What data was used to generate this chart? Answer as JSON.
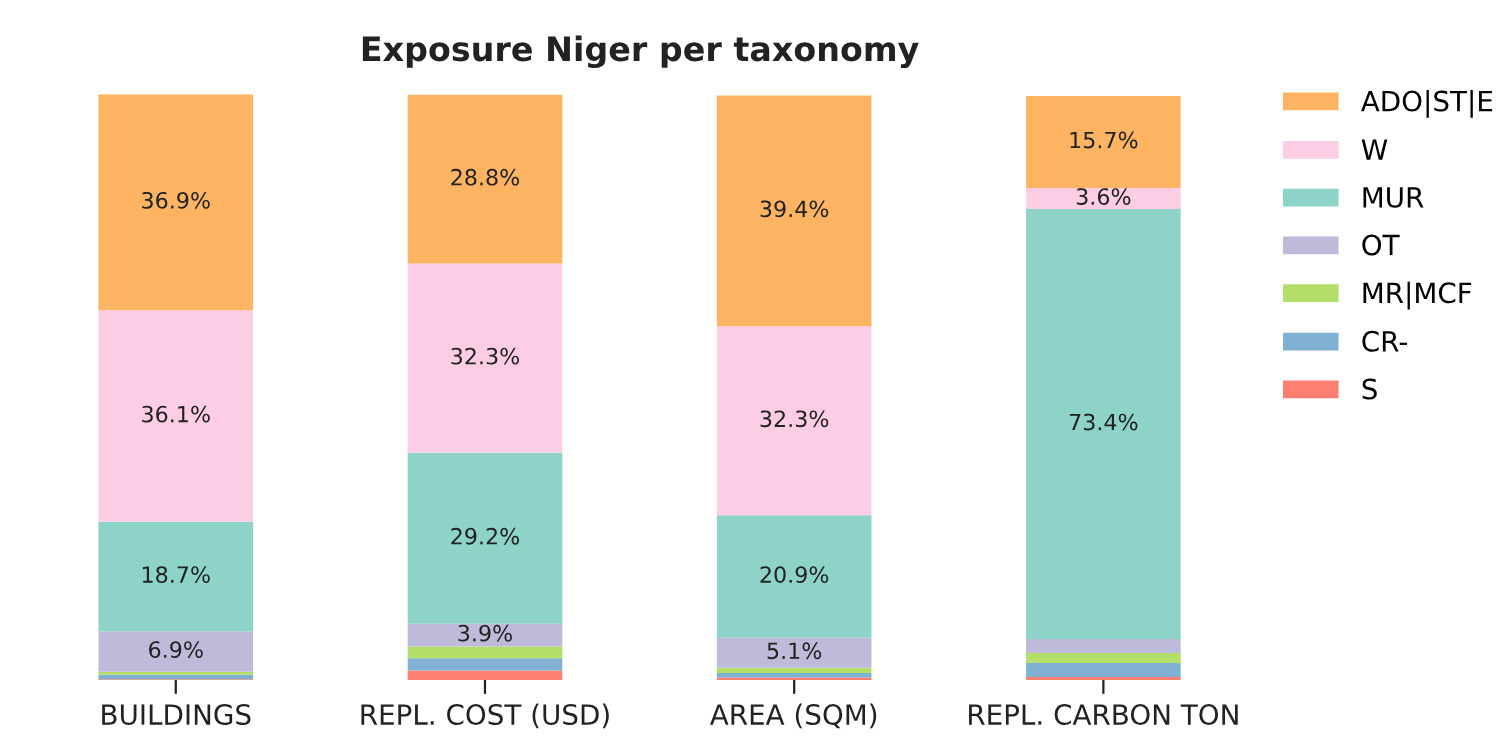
{
  "chart_data": {
    "type": "bar",
    "title": "Exposure Niger per taxonomy",
    "stacked": true,
    "legend": "top right",
    "grid": false,
    "categories": [
      "BUILDINGS",
      "REPL. COST (USD)",
      "AREA (SQM)",
      "REPL. CARBON TON"
    ],
    "series": [
      {
        "name": "S",
        "color": "#fb8072",
        "values": [
          0.1,
          1.6,
          0.4,
          0.5
        ],
        "value_labels": [
          null,
          null,
          null,
          null
        ]
      },
      {
        "name": "CR-",
        "color": "#80b1d3",
        "values": [
          0.8,
          2.1,
          0.8,
          2.4
        ],
        "value_labels": [
          null,
          null,
          null,
          null
        ]
      },
      {
        "name": "MR|MCF",
        "color": "#b3de69",
        "values": [
          0.5,
          2.0,
          0.9,
          1.7
        ],
        "value_labels": [
          null,
          null,
          null,
          null
        ]
      },
      {
        "name": "OT",
        "color": "#bebada",
        "values": [
          6.9,
          3.9,
          5.1,
          2.4
        ],
        "value_labels": [
          "6.9%",
          "3.9%",
          "5.1%",
          null
        ]
      },
      {
        "name": "MUR",
        "color": "#8dd3c7",
        "values": [
          18.7,
          29.2,
          20.9,
          73.4
        ],
        "value_labels": [
          "18.7%",
          "29.2%",
          "20.9%",
          "73.4%"
        ]
      },
      {
        "name": "W",
        "color": "#fccde5",
        "values": [
          36.1,
          32.3,
          32.3,
          3.6
        ],
        "value_labels": [
          "36.1%",
          "32.3%",
          "32.3%",
          "3.6%"
        ]
      },
      {
        "name": "ADO|ST|E",
        "color": "#fdb462",
        "values": [
          36.9,
          28.8,
          39.4,
          15.7
        ],
        "value_labels": [
          "36.9%",
          "28.8%",
          "39.4%",
          "15.7%"
        ]
      }
    ]
  }
}
